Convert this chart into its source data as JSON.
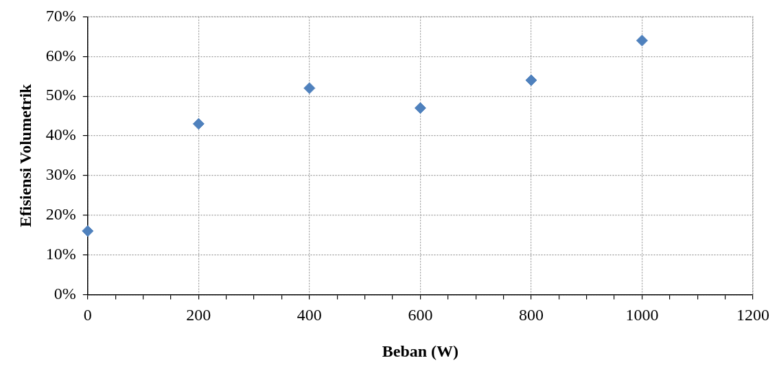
{
  "chart_data": {
    "type": "scatter",
    "xlabel": "Beban (W)",
    "ylabel": "Efisiensi Volumetrik",
    "x": [
      0,
      200,
      400,
      600,
      800,
      1000
    ],
    "series": [
      {
        "color": "#4f81bd",
        "values": [
          16,
          43,
          52,
          47,
          54,
          64
        ]
      }
    ],
    "xlim": [
      0,
      1200
    ],
    "xticks": [
      0,
      {
        "value": 50,
        "label": null
      },
      {
        "value": 100,
        "label": null
      },
      {
        "value": 150,
        "label": null
      },
      200,
      {
        "value": 250,
        "label": null
      },
      {
        "value": 300,
        "label": null
      },
      {
        "value": 350,
        "label": null
      },
      400,
      {
        "value": 450,
        "label": null
      },
      {
        "value": 500,
        "label": null
      },
      {
        "value": 550,
        "label": null
      },
      600,
      {
        "value": 650,
        "label": null
      },
      {
        "value": 700,
        "label": null
      },
      {
        "value": 750,
        "label": null
      },
      800,
      {
        "value": 850,
        "label": null
      },
      {
        "value": 900,
        "label": null
      },
      {
        "value": 950,
        "label": null
      },
      1000,
      {
        "value": 1050,
        "label": null
      },
      {
        "value": 1100,
        "label": null
      },
      {
        "value": 1150,
        "label": null
      },
      1200
    ],
    "ylim": [
      0,
      70
    ],
    "yticks": [
      {
        "value": 0,
        "label": "0%"
      },
      {
        "value": 10,
        "label": "10%"
      },
      {
        "value": 20,
        "label": "20%"
      },
      {
        "value": 30,
        "label": "30%"
      },
      {
        "value": 40,
        "label": "40%"
      },
      {
        "value": 50,
        "label": "50%"
      },
      {
        "value": 60,
        "label": "60%"
      },
      {
        "value": 70,
        "label": "70%"
      }
    ],
    "grid": true,
    "marker": "diamond",
    "legend": false
  }
}
